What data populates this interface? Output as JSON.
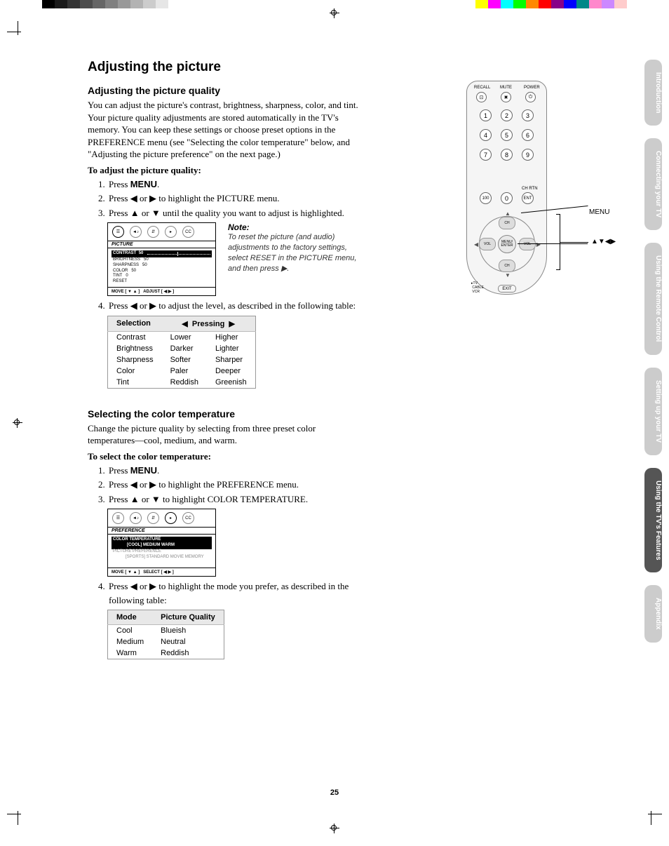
{
  "print": {
    "left_colors": [
      "#000",
      "#1a1a1a",
      "#333",
      "#4d4d4d",
      "#666",
      "#808080",
      "#999",
      "#b3b3b3",
      "#ccc",
      "#e6e6e6",
      "#fff",
      "#fff"
    ],
    "right_colors": [
      "#ff0",
      "#f0f",
      "#0ff",
      "#0f0",
      "#f80",
      "#f00",
      "#808",
      "#00f",
      "#088",
      "#f8c",
      "#c8f",
      "#fcc"
    ]
  },
  "h1": "Adjusting the picture",
  "sec1": {
    "h2": "Adjusting the picture quality",
    "p": "You can adjust the picture's contrast, brightness, sharpness, color, and tint. Your picture quality adjustments are stored automatically in the TV's memory. You can keep these settings or choose preset options in the PREFERENCE menu (see \"Selecting the color temperature\" below, and \"Adjusting the picture preference\" on the next page.)",
    "lead": "To adjust the picture quality:",
    "steps": {
      "s1a": "Press ",
      "s1b": "MENU",
      "s1c": ".",
      "s2a": "Press ◀ or ▶ to highlight the PICTURE menu.",
      "s3a": "Press ▲ or ▼ until the quality you want to adjust is highlighted.",
      "s4a": "Press ◀ or ▶ to adjust the level, as described in the following table:"
    },
    "menu": {
      "title": "PICTURE",
      "hl_label": "CONTRAST",
      "hl_val": "50",
      "rows": [
        {
          "l": "BRIGHTNESS",
          "v": "50"
        },
        {
          "l": "SHARPNESS",
          "v": "50"
        },
        {
          "l": "COLOR",
          "v": "50"
        },
        {
          "l": "TINT",
          "v": "0"
        },
        {
          "l": "RESET",
          "v": ""
        }
      ],
      "foot_l": "MOVE [ ▼ ▲ ]",
      "foot_r": "ADJUST [ ◀  ▶ ]"
    },
    "note_title": "Note:",
    "note_body": "To reset the picture (and audio) adjustments to the factory settings, select RESET in the PICTURE menu, and then press ▶.",
    "table": {
      "th1": "Selection",
      "th2_l": "◀",
      "th2_m": "Pressing",
      "th2_r": "▶",
      "rows": [
        [
          "Contrast",
          "Lower",
          "Higher"
        ],
        [
          "Brightness",
          "Darker",
          "Lighter"
        ],
        [
          "Sharpness",
          "Softer",
          "Sharper"
        ],
        [
          "Color",
          "Paler",
          "Deeper"
        ],
        [
          "Tint",
          "Reddish",
          "Greenish"
        ]
      ]
    }
  },
  "sec2": {
    "h2": "Selecting the color temperature",
    "p": "Change the picture quality by selecting from three preset color temperatures—cool, medium, and warm.",
    "lead": "To select the color temperature:",
    "steps": {
      "s1a": "Press ",
      "s1b": "MENU",
      "s1c": ".",
      "s2a": "Press ◀ or ▶ to highlight the PREFERENCE menu.",
      "s3a": "Press ▲ or ▼ to highlight COLOR TEMPERATURE.",
      "s4a": "Press ◀ or ▶ to highlight the mode you prefer, as described in the following table:"
    },
    "menu": {
      "title": "PREFERENCE",
      "hl": "COLOR TEMPERATURE",
      "hl2": "[COOL] MEDIUM WARM",
      "r2a": "PICTURE PREFERENCE",
      "r2b": "[SPORTS] STANDARD MOVIE MEMORY",
      "foot_l": "MOVE [ ▼ ▲ ]",
      "foot_r": "SELECT [ ◀  ▶ ]"
    },
    "table": {
      "th1": "Mode",
      "th2": "Picture Quality",
      "rows": [
        [
          "Cool",
          "Blueish"
        ],
        [
          "Medium",
          "Neutral"
        ],
        [
          "Warm",
          "Reddish"
        ]
      ]
    }
  },
  "remote": {
    "top": {
      "recall": "RECALL",
      "mute": "MUTE",
      "power": "POWER"
    },
    "nums": [
      "1",
      "2",
      "3",
      "4",
      "5",
      "6",
      "7",
      "8",
      "9",
      "100",
      "0",
      "ENT"
    ],
    "chrtn": "CH RTN",
    "dpad": {
      "ch": "CH",
      "vol": "VOL",
      "center": "MENU/\nENTER"
    },
    "switch": [
      "TV",
      "CABLE",
      "VCR"
    ],
    "exit": "EXIT",
    "call_menu": "MENU",
    "call_arrows": "▲▼◀▶",
    "icons": {
      "recall": "⊡",
      "mute": "✖",
      "power": "⏻"
    }
  },
  "tabs": [
    {
      "t": "Introduction",
      "a": false
    },
    {
      "t": "Connecting your TV",
      "a": false
    },
    {
      "t": "Using the Remote Control",
      "a": false
    },
    {
      "t": "Setting up your TV",
      "a": false
    },
    {
      "t": "Using the TV's Features",
      "a": true
    },
    {
      "t": "Appendix",
      "a": false
    }
  ],
  "page_num": "25"
}
